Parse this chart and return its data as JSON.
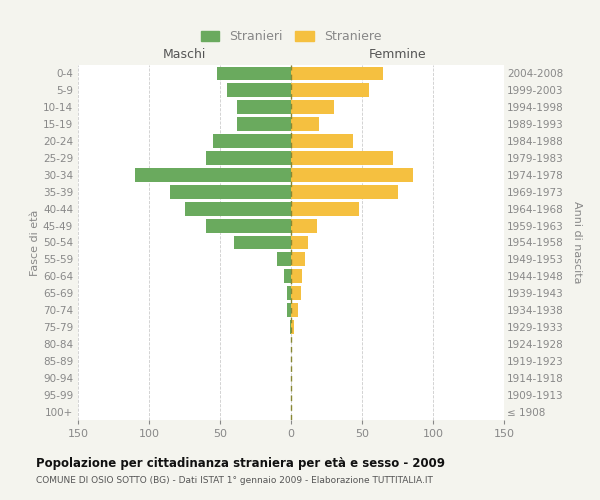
{
  "age_groups": [
    "100+",
    "95-99",
    "90-94",
    "85-89",
    "80-84",
    "75-79",
    "70-74",
    "65-69",
    "60-64",
    "55-59",
    "50-54",
    "45-49",
    "40-44",
    "35-39",
    "30-34",
    "25-29",
    "20-24",
    "15-19",
    "10-14",
    "5-9",
    "0-4"
  ],
  "birth_years": [
    "≤ 1908",
    "1909-1913",
    "1914-1918",
    "1919-1923",
    "1924-1928",
    "1929-1933",
    "1934-1938",
    "1939-1943",
    "1944-1948",
    "1949-1953",
    "1954-1958",
    "1959-1963",
    "1964-1968",
    "1969-1973",
    "1974-1978",
    "1979-1983",
    "1984-1988",
    "1989-1993",
    "1994-1998",
    "1999-2003",
    "2004-2008"
  ],
  "males": [
    0,
    0,
    0,
    0,
    0,
    1,
    3,
    3,
    5,
    10,
    40,
    60,
    75,
    85,
    110,
    60,
    55,
    38,
    38,
    45,
    52
  ],
  "females": [
    0,
    0,
    0,
    0,
    0,
    2,
    5,
    7,
    8,
    10,
    12,
    18,
    48,
    75,
    86,
    72,
    44,
    20,
    30,
    55,
    65
  ],
  "male_color": "#6aaa5e",
  "female_color": "#f5c040",
  "title": "Popolazione per cittadinanza straniera per età e sesso - 2009",
  "subtitle": "COMUNE DI OSIO SOTTO (BG) - Dati ISTAT 1° gennaio 2009 - Elaborazione TUTTITALIA.IT",
  "xlabel_left": "Maschi",
  "xlabel_right": "Femmine",
  "ylabel_left": "Fasce di età",
  "ylabel_right": "Anni di nascita",
  "legend_male": "Stranieri",
  "legend_female": "Straniere",
  "xlim": 150,
  "bg_color": "#f4f4ee",
  "plot_bg_color": "#ffffff",
  "grid_color": "#cccccc",
  "tick_color": "#888888",
  "label_color": "#555555",
  "title_color": "#111111",
  "subtitle_color": "#555555"
}
